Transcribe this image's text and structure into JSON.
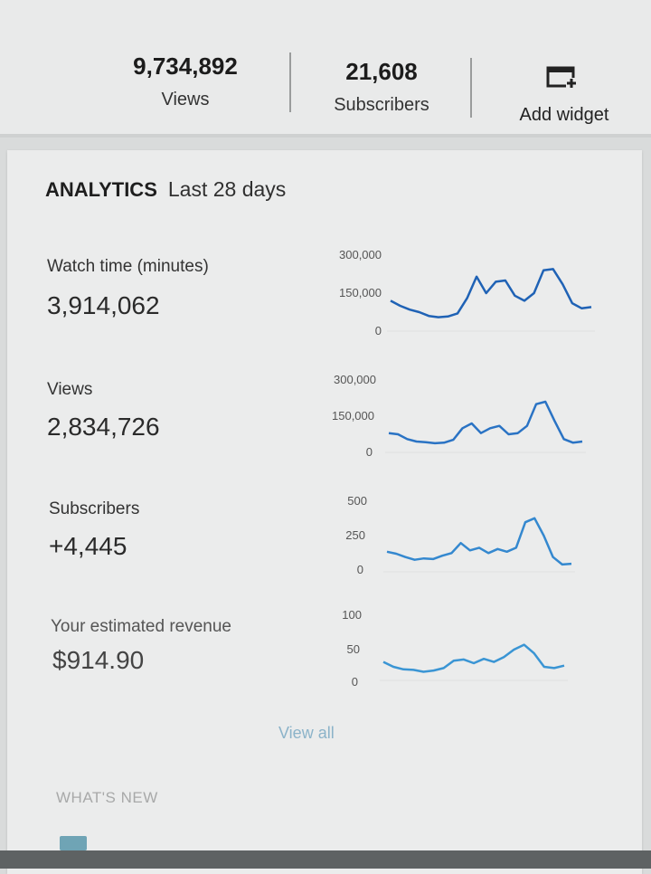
{
  "header": {
    "views_value": "9,734,892",
    "views_label": "Views",
    "subscribers_value": "21,608",
    "subscribers_label": "Subscribers",
    "add_widget_label": "Add widget",
    "add_widget_icon": "add-widget-icon"
  },
  "analytics": {
    "title": "ANALYTICS",
    "range": "Last 28 days",
    "view_all": "View all",
    "whats_new": "WHAT'S NEW",
    "accent_color": "#1f65b8",
    "metrics": [
      {
        "label": "Watch time (minutes)",
        "value": "3,914,062",
        "ticks": [
          "300,000",
          "150,000",
          "0"
        ],
        "color": "#1f62b5"
      },
      {
        "label": "Views",
        "value": "2,834,726",
        "ticks": [
          "300,000",
          "150,000",
          "0"
        ],
        "color": "#2a73c4"
      },
      {
        "label": "Subscribers",
        "value": "+4,445",
        "ticks": [
          "500",
          "250",
          "0"
        ],
        "color": "#3488cf"
      },
      {
        "label": "Your estimated revenue",
        "value": "$914.90",
        "ticks": [
          "100",
          "50",
          "0"
        ],
        "color": "#3a95d4"
      }
    ]
  },
  "chart_data": [
    {
      "type": "line",
      "title": "Watch time (minutes)",
      "ylim": [
        0,
        300000
      ],
      "series": [
        {
          "values": [
            120000,
            100000,
            85000,
            75000,
            60000,
            55000,
            58000,
            70000,
            130000,
            215000,
            150000,
            195000,
            200000,
            140000,
            120000,
            150000,
            240000,
            245000,
            185000,
            110000,
            90000,
            95000
          ]
        }
      ]
    },
    {
      "type": "line",
      "title": "Views",
      "ylim": [
        0,
        300000
      ],
      "series": [
        {
          "values": [
            80000,
            75000,
            55000,
            45000,
            42000,
            38000,
            40000,
            52000,
            100000,
            120000,
            80000,
            100000,
            110000,
            75000,
            80000,
            110000,
            200000,
            210000,
            130000,
            55000,
            40000,
            45000
          ]
        }
      ]
    },
    {
      "type": "line",
      "title": "Subscribers",
      "ylim": [
        0,
        500
      ],
      "series": [
        {
          "values": [
            150,
            135,
            110,
            90,
            100,
            95,
            120,
            140,
            215,
            160,
            180,
            140,
            170,
            150,
            180,
            370,
            400,
            270,
            110,
            55,
            60
          ]
        }
      ]
    },
    {
      "type": "line",
      "title": "Your estimated revenue",
      "ylim": [
        0,
        100
      ],
      "series": [
        {
          "values": [
            30,
            22,
            18,
            17,
            14,
            16,
            20,
            32,
            34,
            28,
            35,
            30,
            38,
            50,
            58,
            44,
            22,
            20,
            24
          ]
        }
      ]
    }
  ]
}
